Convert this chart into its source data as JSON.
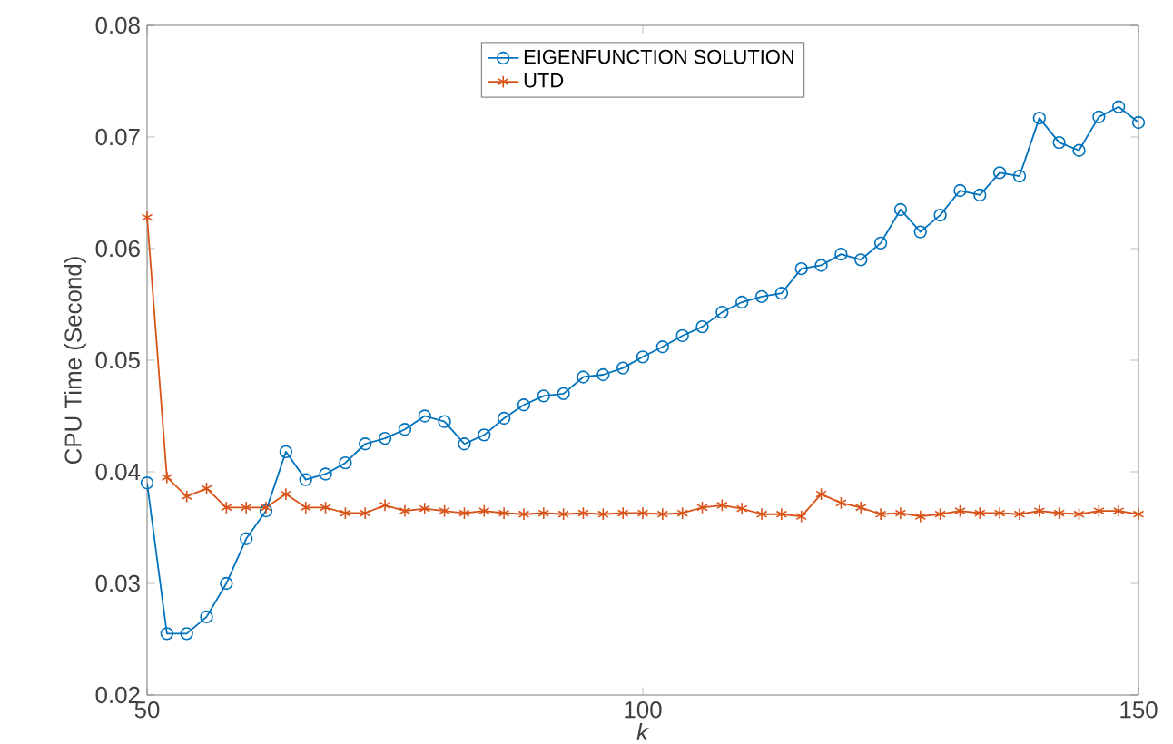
{
  "chart_data": {
    "type": "line",
    "xlabel": "*k*",
    "ylabel": "CPU Time (Second)",
    "legend": "top",
    "grid": false,
    "x": [
      50,
      52,
      54,
      56,
      58,
      60,
      62,
      64,
      66,
      68,
      70,
      72,
      74,
      76,
      78,
      80,
      82,
      84,
      86,
      88,
      90,
      92,
      94,
      96,
      98,
      100,
      102,
      104,
      106,
      108,
      110,
      112,
      114,
      116,
      118,
      120,
      122,
      124,
      126,
      128,
      130,
      132,
      134,
      136,
      138,
      140,
      142,
      144,
      146,
      148,
      150
    ],
    "xlim": [
      50,
      150
    ],
    "xticks": [
      50,
      100,
      150
    ],
    "ylim": [
      0.02,
      0.08
    ],
    "yticks": [
      0.02,
      0.03,
      0.04,
      0.05,
      0.06,
      0.07,
      0.08
    ],
    "series": [
      {
        "name": "EIGENFUNCTION SOLUTION",
        "color": "#0072bd",
        "marker": "circle",
        "values": [
          0.039,
          0.0255,
          0.0255,
          0.027,
          0.03,
          0.034,
          0.0365,
          0.0418,
          0.0393,
          0.0398,
          0.0408,
          0.0425,
          0.043,
          0.0438,
          0.045,
          0.0445,
          0.0425,
          0.0433,
          0.0448,
          0.046,
          0.0468,
          0.047,
          0.0485,
          0.0487,
          0.0493,
          0.0503,
          0.0512,
          0.0522,
          0.053,
          0.0543,
          0.0552,
          0.0557,
          0.056,
          0.0582,
          0.0585,
          0.0595,
          0.059,
          0.0605,
          0.0635,
          0.0615,
          0.063,
          0.0652,
          0.0648,
          0.0668,
          0.0665,
          0.0717,
          0.0695,
          0.0688,
          0.0718,
          0.0727,
          0.0713
        ]
      },
      {
        "name": "UTD",
        "color": "#d95319",
        "marker": "cross",
        "values": [
          0.0628,
          0.0395,
          0.0378,
          0.0385,
          0.0368,
          0.0368,
          0.0368,
          0.038,
          0.0368,
          0.0368,
          0.0363,
          0.0363,
          0.037,
          0.0365,
          0.0367,
          0.0365,
          0.0363,
          0.0365,
          0.0363,
          0.0362,
          0.0363,
          0.0362,
          0.0363,
          0.0362,
          0.0363,
          0.0363,
          0.0362,
          0.0363,
          0.0368,
          0.037,
          0.0367,
          0.0362,
          0.0362,
          0.036,
          0.038,
          0.0372,
          0.0368,
          0.0362,
          0.0363,
          0.036,
          0.0362,
          0.0365,
          0.0363,
          0.0363,
          0.0362,
          0.0365,
          0.0363,
          0.0362,
          0.0365,
          0.0365,
          0.0362
        ]
      }
    ]
  }
}
